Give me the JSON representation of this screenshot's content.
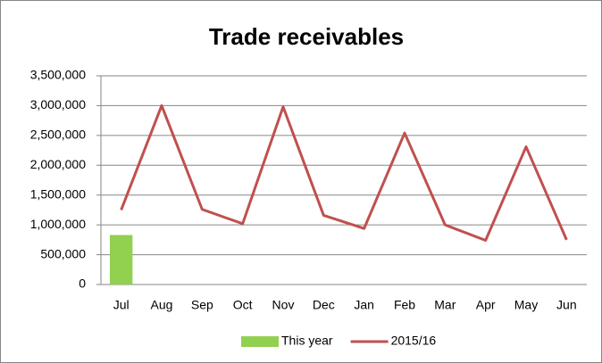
{
  "chart_data": {
    "type": "combo",
    "title": "Trade receivables",
    "categories": [
      "Jul",
      "Aug",
      "Sep",
      "Oct",
      "Nov",
      "Dec",
      "Jan",
      "Feb",
      "Mar",
      "Apr",
      "May",
      "Jun"
    ],
    "series": [
      {
        "name": "This year",
        "type": "bar",
        "color": "#92d050",
        "values": [
          830000,
          null,
          null,
          null,
          null,
          null,
          null,
          null,
          null,
          null,
          null,
          null
        ]
      },
      {
        "name": "2015/16",
        "type": "line",
        "color": "#c0504d",
        "values": [
          1250000,
          3000000,
          1260000,
          1020000,
          2980000,
          1160000,
          940000,
          2540000,
          1000000,
          740000,
          2310000,
          750000
        ]
      }
    ],
    "ylim": [
      0,
      3500000
    ],
    "yticks": [
      0,
      {
        "value": 500000,
        "label": "500,000"
      },
      {
        "value": 1000000,
        "label": "1,000,000"
      },
      {
        "value": 1500000,
        "label": "1,500,000"
      },
      {
        "value": 2000000,
        "label": "2,000,000"
      },
      {
        "value": 2500000,
        "label": "2,500,000"
      },
      {
        "value": 3000000,
        "label": "3,000,000"
      },
      {
        "value": 3500000,
        "label": "3,500,000"
      }
    ],
    "grid": true,
    "legend": "bottom"
  }
}
